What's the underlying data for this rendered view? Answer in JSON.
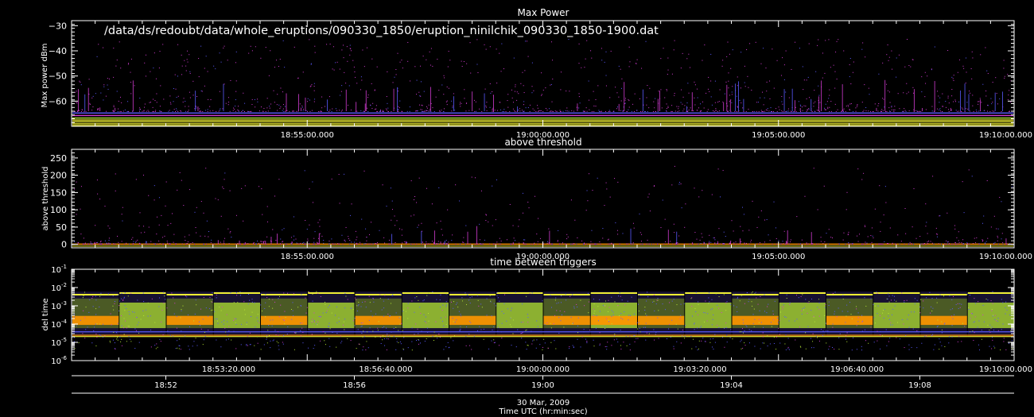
{
  "page": {
    "path_label": "/data/ds/redoubt/data/whole_eruptions/090330_1850/eruption_ninilchik_090330_1850-1900.dat",
    "date_label": "30 Mar, 2009",
    "time_axis_label": "Time UTC (hr:min:sec)"
  },
  "chart_data": [
    {
      "type": "scatter",
      "title": "Max Power",
      "ylabel": "Max power dBm",
      "xlim": [
        "18:50:00",
        "19:10:00"
      ],
      "ylim": [
        -70,
        -28
      ],
      "yticks": [
        -30,
        -40,
        -50,
        -60
      ],
      "ytick_labels": [
        "−30",
        "−40",
        "−50",
        "−60"
      ],
      "xtick_labels": [
        "18:55:00.000",
        "19:00:00.000",
        "19:05:00.000",
        "19:10:00.000"
      ],
      "grid": false
    },
    {
      "type": "scatter",
      "title": "above threshold",
      "ylabel": "above threshold",
      "xlim": [
        "18:50:00",
        "19:10:00"
      ],
      "ylim": [
        -10,
        275
      ],
      "yticks": [
        0,
        50,
        100,
        150,
        200,
        250
      ],
      "ytick_labels": [
        "0",
        "50",
        "100",
        "150",
        "200",
        "250"
      ],
      "xtick_labels": [
        "18:55:00.000",
        "19:00:00.000",
        "19:05:00.000",
        "19:10:00.000"
      ],
      "grid": false
    },
    {
      "type": "scatter",
      "title": "time between triggers",
      "ylabel": "del time",
      "yscale": "log",
      "xlim": [
        "18:50:00",
        "19:10:00"
      ],
      "ylim": [
        1e-06,
        0.1
      ],
      "yticks": [
        0.1,
        0.01,
        0.001,
        0.0001,
        1e-05,
        1e-06
      ],
      "ytick_labels": [
        {
          "base": "10",
          "exp": "-1"
        },
        {
          "base": "10",
          "exp": "-2"
        },
        {
          "base": "10",
          "exp": "-3"
        },
        {
          "base": "10",
          "exp": "-4"
        },
        {
          "base": "10",
          "exp": "-5"
        },
        {
          "base": "10",
          "exp": "-6"
        }
      ],
      "xtick_labels": [
        "18:53:20.000",
        "18:56:40.000",
        "19:00:00.000",
        "19:03:20.000",
        "19:06:40.000",
        "19:10:00.000"
      ],
      "axis2_tick_labels": [
        "18:52",
        "18:56",
        "19:00",
        "19:04",
        "19:08"
      ],
      "grid": false
    }
  ],
  "colors": {
    "background": "#000000",
    "axes": "#ffffff",
    "magenta": "#d23cd2",
    "blue": "#5a5aff",
    "yellow": "#f0f032",
    "green": "#b4e632",
    "orange": "#ff9600",
    "olive": "#6e8c1e"
  }
}
